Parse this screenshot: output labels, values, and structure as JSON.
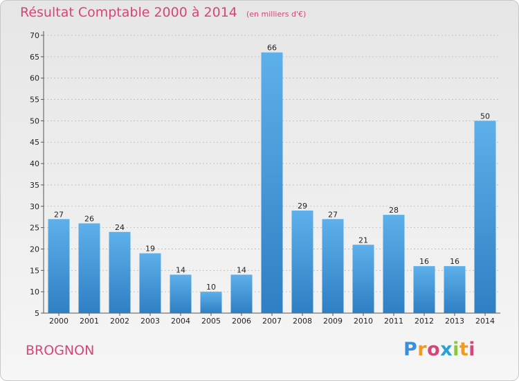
{
  "title": "Résultat Comptable 2000 à 2014",
  "unit": "(en milliers d'€)",
  "commune": "BROGNON",
  "logo": {
    "letters": [
      "P",
      "r",
      "o",
      "x",
      "i",
      "t",
      "i"
    ],
    "colors": [
      "#3b8fd9",
      "#f29a1f",
      "#d6457a",
      "#2a9fd8",
      "#8cc63f",
      "#f29a1f",
      "#d6457a"
    ]
  },
  "colors": {
    "bar": "#3d95d8",
    "bar_light": "#5db0ea",
    "accent": "#d6457a"
  },
  "chart_data": {
    "type": "bar",
    "title": "Résultat Comptable 2000 à 2014",
    "subtitle": "(en milliers d'€)",
    "xlabel": "",
    "ylabel": "",
    "categories": [
      "2000",
      "2001",
      "2002",
      "2003",
      "2004",
      "2005",
      "2006",
      "2007",
      "2008",
      "2009",
      "2010",
      "2011",
      "2012",
      "2013",
      "2014"
    ],
    "values": [
      27,
      26,
      24,
      19,
      14,
      10,
      14,
      66,
      29,
      27,
      21,
      28,
      16,
      16,
      50
    ],
    "ylim": [
      5,
      70
    ],
    "yticks": [
      5,
      10,
      15,
      20,
      25,
      30,
      35,
      40,
      45,
      50,
      55,
      60,
      65,
      70
    ],
    "grid": true,
    "legend": "none"
  }
}
